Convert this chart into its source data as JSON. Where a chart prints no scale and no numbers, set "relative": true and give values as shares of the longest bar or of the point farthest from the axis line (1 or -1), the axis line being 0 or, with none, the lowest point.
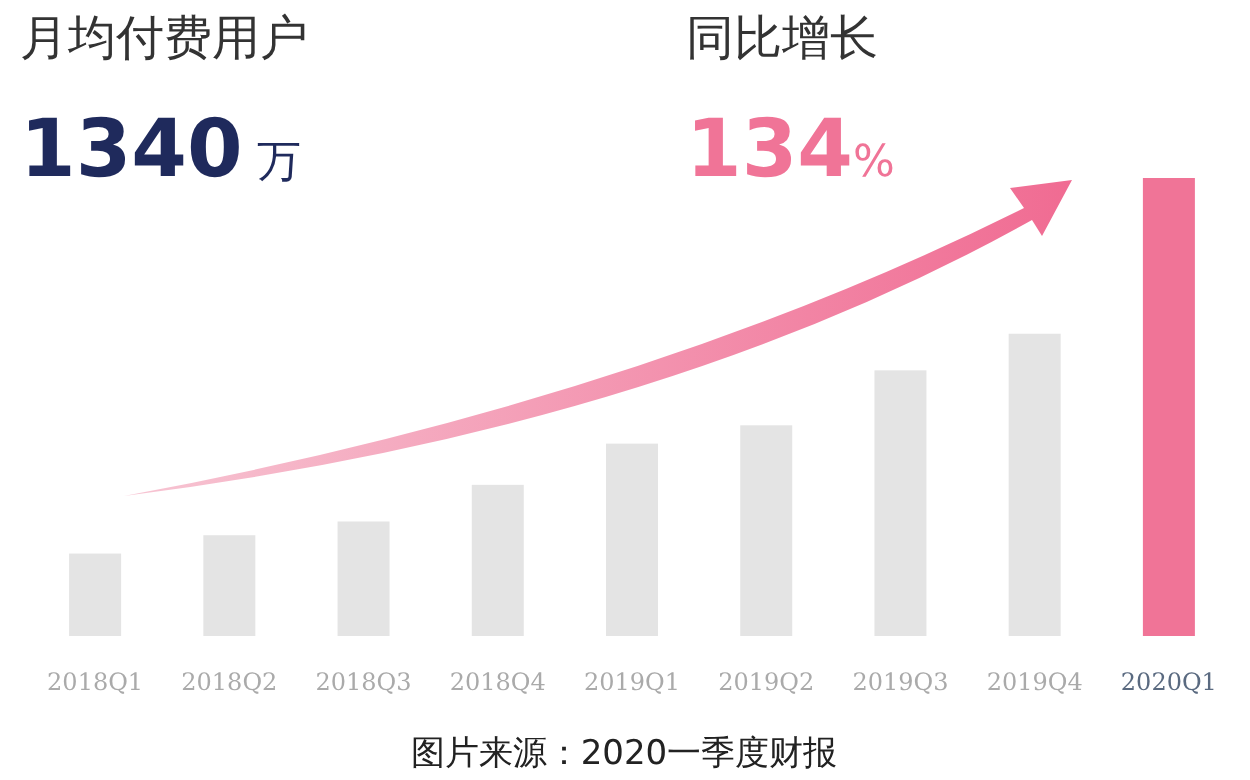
{
  "chart_data": {
    "type": "bar",
    "relative": true,
    "categories": [
      "2018Q1",
      "2018Q2",
      "2018Q3",
      "2018Q4",
      "2019Q1",
      "2019Q2",
      "2019Q3",
      "2019Q4",
      "2020Q1"
    ],
    "values": [
      0.18,
      0.22,
      0.25,
      0.33,
      0.42,
      0.46,
      0.58,
      0.66,
      1
    ],
    "colors": [
      "#e4e4e4",
      "#e4e4e4",
      "#e4e4e4",
      "#e4e4e4",
      "#e4e4e4",
      "#e4e4e4",
      "#e4e4e4",
      "#e4e4e4",
      "#f07497"
    ],
    "annotations": [
      "月均付费用户",
      "1340 万",
      "同比增长",
      "134%",
      "图片来源：2020一季度财报"
    ]
  }
}
